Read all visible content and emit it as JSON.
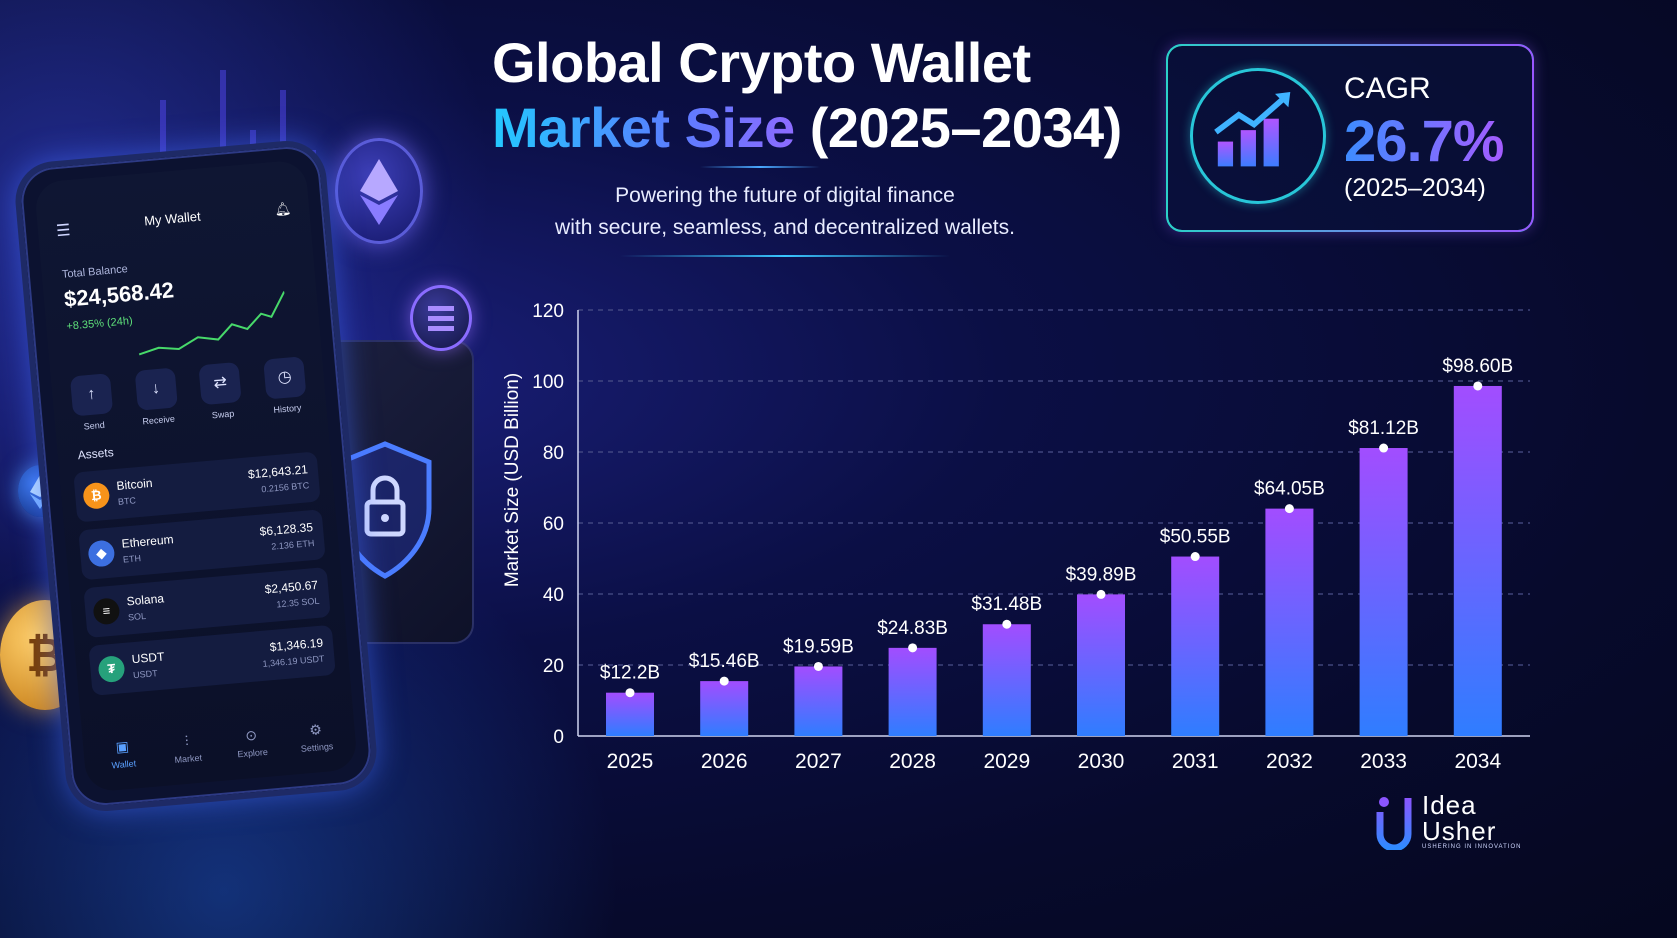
{
  "title": {
    "line1": "Global Crypto Wallet",
    "line2_highlight": "Market Size",
    "line2_rest": " (2025–2034)"
  },
  "subtitle": {
    "line1": "Powering the future of digital finance",
    "line2": "with secure, seamless, and decentralized wallets."
  },
  "cagr": {
    "label": "CAGR",
    "value": "26.7%",
    "period": "(2025–2034)",
    "icon": "growth-chart-icon"
  },
  "phone": {
    "header": "My Wallet",
    "balance_label": "Total Balance",
    "balance": "$24,568.42",
    "change": "+8.35% (24h)",
    "actions": [
      "Send",
      "Receive",
      "Swap",
      "History"
    ],
    "assets_label": "Assets",
    "assets": [
      {
        "name": "Bitcoin",
        "symbol": "BTC",
        "value": "$12,643.21",
        "amount": "0.2156 BTC",
        "color": "#f7931a",
        "glyph": "₿"
      },
      {
        "name": "Ethereum",
        "symbol": "ETH",
        "value": "$6,128.35",
        "amount": "2.136 ETH",
        "color": "#3c6fe0",
        "glyph": "◆"
      },
      {
        "name": "Solana",
        "symbol": "SOL",
        "value": "$2,450.67",
        "amount": "12.35 SOL",
        "color": "#111",
        "glyph": "≡"
      },
      {
        "name": "USDT",
        "symbol": "USDT",
        "value": "$1,346.19",
        "amount": "1,346.19 USDT",
        "color": "#26a17b",
        "glyph": "₮"
      }
    ],
    "nav": [
      "Wallet",
      "Market",
      "Explore",
      "Settings"
    ]
  },
  "logo": {
    "line1": "Idea",
    "line2": "Usher",
    "tagline": "USHERING IN INNOVATION"
  },
  "colors": {
    "bar_top": "#a24dff",
    "bar_bottom": "#2f7dff",
    "accent_cyan": "#29c1c9",
    "grid": "#4a4f88"
  },
  "chart_data": {
    "type": "bar",
    "ylabel": "Market Size (USD Billion)",
    "xlabel": "",
    "ylim": [
      0,
      120
    ],
    "yticks": [
      0,
      20,
      40,
      60,
      80,
      100,
      120
    ],
    "grid": true,
    "categories": [
      "2025",
      "2026",
      "2027",
      "2028",
      "2029",
      "2030",
      "2031",
      "2032",
      "2033",
      "2034"
    ],
    "values": [
      12.2,
      15.46,
      19.59,
      24.83,
      31.48,
      39.89,
      50.55,
      64.05,
      81.12,
      98.6
    ],
    "labels": [
      "$12.2B",
      "$15.46B",
      "$19.59B",
      "$24.83B",
      "$31.48B",
      "$39.89B",
      "$50.55B",
      "$64.05B",
      "$81.12B",
      "$98.60B"
    ]
  }
}
